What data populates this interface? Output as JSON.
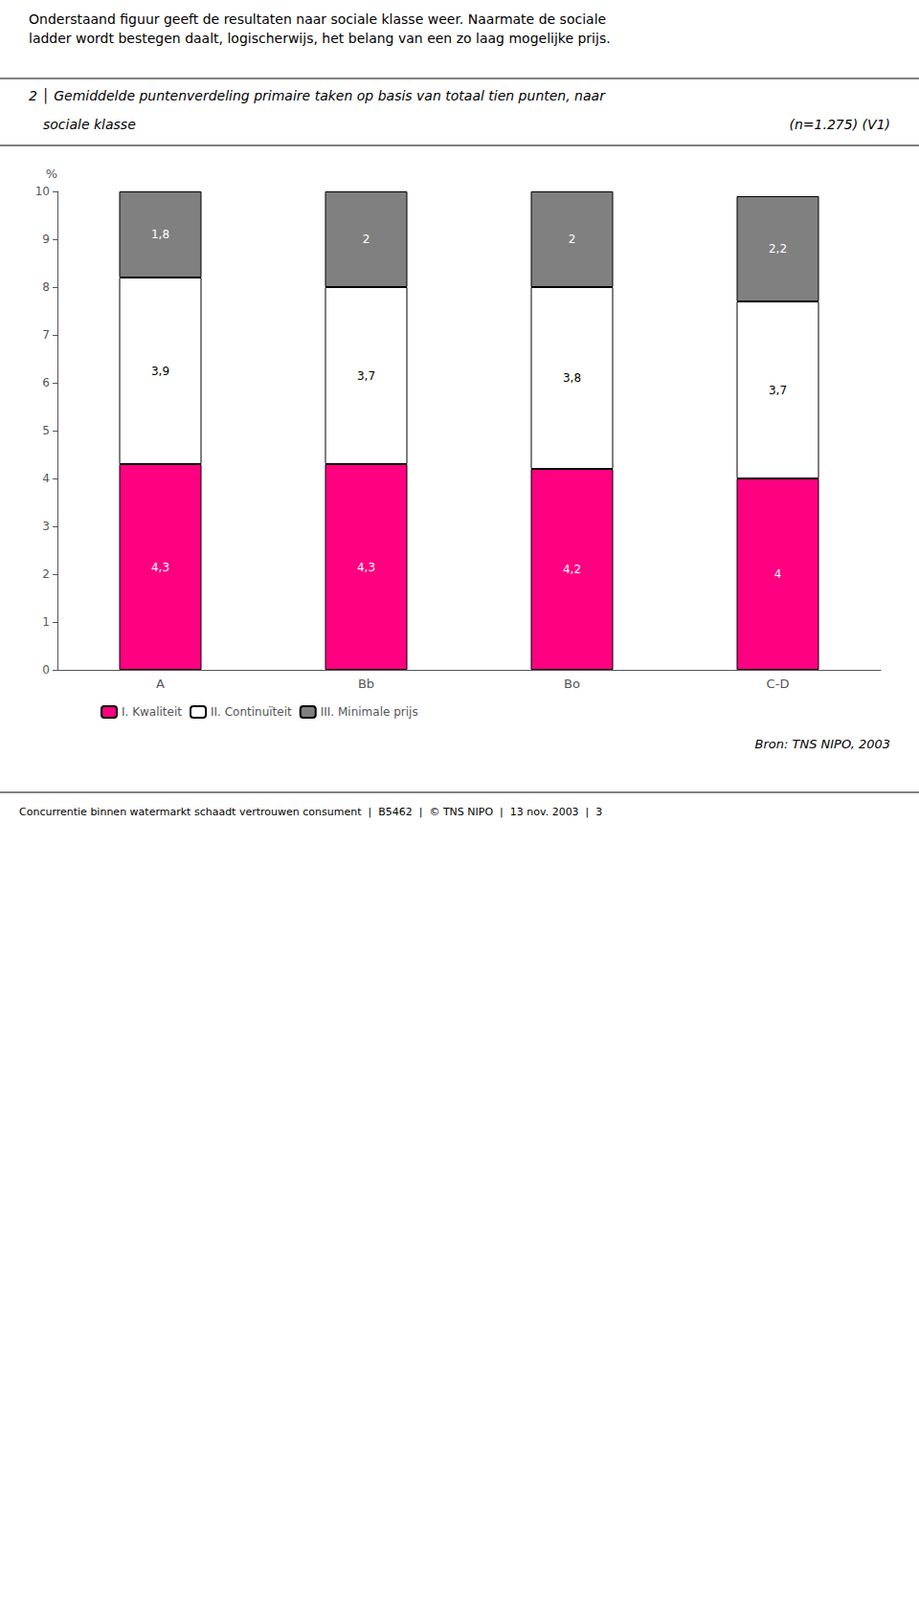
{
  "chart_data": {
    "type": "bar",
    "header": "Onderstaand figuur geeft de resultaten naar sociale klasse weer. Naarmate de sociale\nladder wordt bestegen daalt, logischerwijs, het belang van een zo laag mogelijke prijs.",
    "title": "2 │ Gemiddelde puntenverdeling primaire taken op basis van totaal tien punten, naar",
    "subtitle": "sociale klasse",
    "title_note": "(n=1.275) (V1)",
    "source": "Bron: TNS NIPO, 2003",
    "footer": "Concurrentie binnen watermarkt schaadt vertrouwen consument  |  B5462  |  © TNS NIPO  |  13 nov. 2003  |  3",
    "ylabel": "%",
    "categories": [
      "A",
      "Bb",
      "Bo",
      "C-D"
    ],
    "stacked": true,
    "data_labels": true,
    "grid": false,
    "legend": "bottom",
    "series": [
      {
        "name": "I. Kwaliteit",
        "color": "#FF0080",
        "values": [
          4.3,
          4.3,
          4.2,
          4.0
        ],
        "value_labels": [
          "4,3",
          "4,3",
          "4,2",
          "4"
        ]
      },
      {
        "name": "II. Continuïteit",
        "color": "#FFFFFF",
        "values": [
          3.9,
          3.7,
          3.8,
          3.7
        ],
        "value_labels": [
          "3,9",
          "3,7",
          "3,8",
          "3,7"
        ]
      },
      {
        "name": "III. Minimale prijs",
        "color": "#808080",
        "values": [
          1.8,
          2.0,
          2.0,
          2.2
        ],
        "value_labels": [
          "1,8",
          "2",
          "2",
          "2,2"
        ]
      }
    ],
    "ylim": [
      0,
      10
    ],
    "yticks": [
      0,
      1,
      2,
      3,
      4,
      5,
      6,
      7,
      8,
      9,
      10
    ]
  }
}
